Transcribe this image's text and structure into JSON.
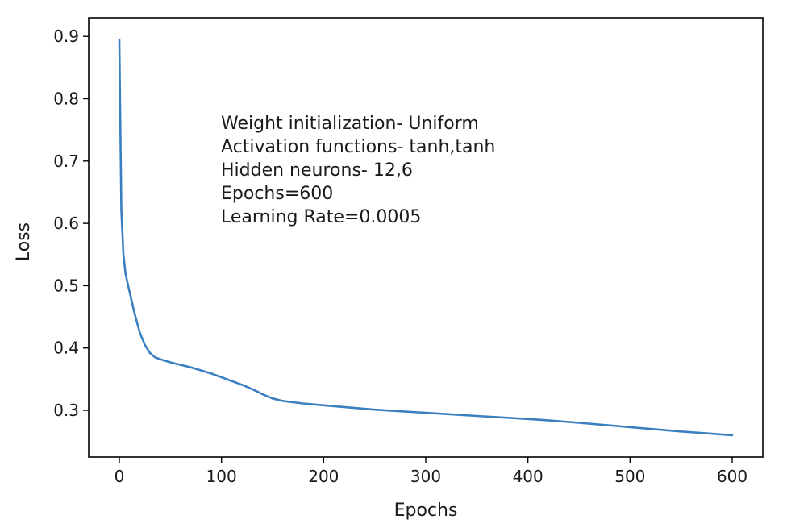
{
  "chart_data": {
    "type": "line",
    "title": "",
    "xlabel": "Epochs",
    "ylabel": "Loss",
    "xlim": [
      -30,
      630
    ],
    "ylim": [
      0.225,
      0.93
    ],
    "x_ticks": [
      0,
      100,
      200,
      300,
      400,
      500,
      600
    ],
    "y_ticks": [
      0.3,
      0.4,
      0.5,
      0.6,
      0.7,
      0.8,
      0.9
    ],
    "grid": false,
    "series": [
      {
        "color": "#3a7fc0",
        "x": [
          0,
          2,
          4,
          6,
          8,
          10,
          15,
          20,
          25,
          30,
          35,
          40,
          50,
          60,
          70,
          80,
          90,
          100,
          110,
          120,
          130,
          140,
          150,
          160,
          180,
          200,
          250,
          300,
          350,
          400,
          420,
          450,
          500,
          550,
          600
        ],
        "y": [
          0.895,
          0.62,
          0.55,
          0.52,
          0.505,
          0.49,
          0.455,
          0.425,
          0.405,
          0.392,
          0.385,
          0.382,
          0.377,
          0.373,
          0.369,
          0.364,
          0.359,
          0.353,
          0.347,
          0.341,
          0.334,
          0.326,
          0.319,
          0.315,
          0.311,
          0.308,
          0.301,
          0.296,
          0.291,
          0.286,
          0.284,
          0.28,
          0.273,
          0.266,
          0.26
        ]
      }
    ],
    "annotation": [
      "Weight initialization- Uniform",
      "Activation functions- tanh,tanh",
      "Hidden neurons- 12,6",
      "Epochs=600",
      "Learning Rate=0.0005"
    ]
  }
}
